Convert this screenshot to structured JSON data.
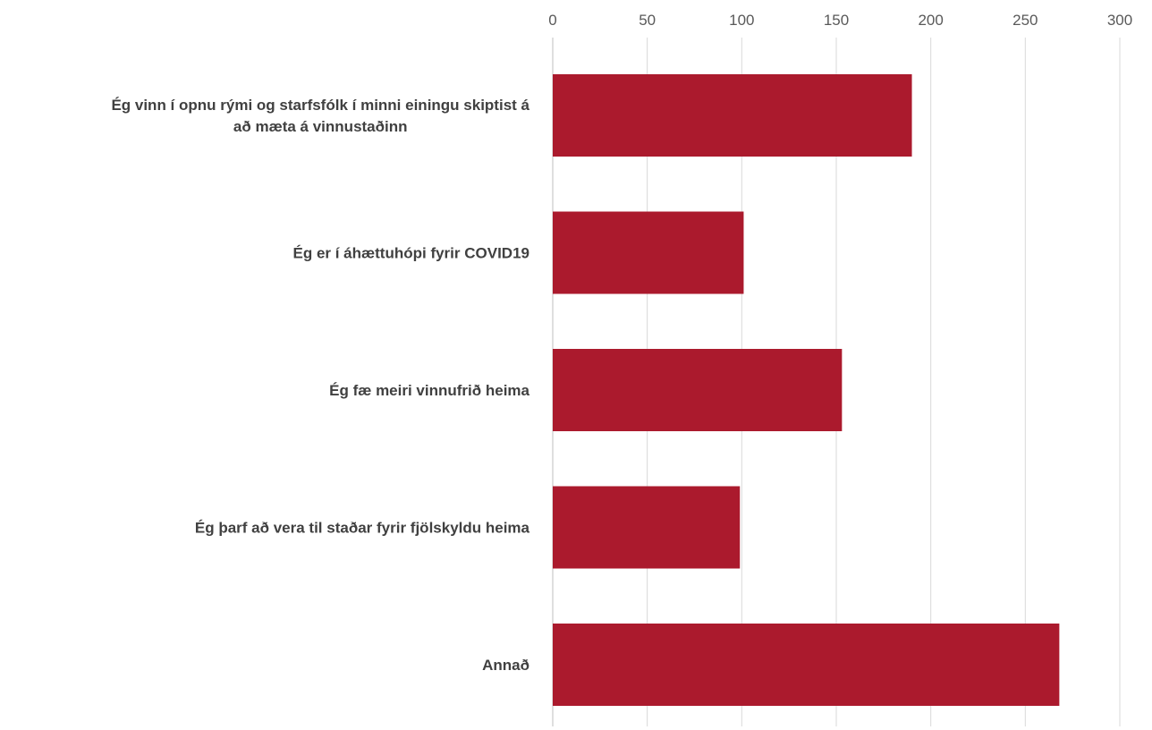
{
  "chart_data": {
    "type": "bar",
    "orientation": "horizontal",
    "categories": [
      "Ég vinn í opnu rými og starfsfólk í minni einingu skiptist á að mæta á vinnustaðinn",
      "Ég er í áhættuhópi fyrir COVID19",
      "Ég fæ meiri vinnufrið heima",
      "Ég þarf að vera til staðar fyrir fjölskyldu heima",
      "Annað"
    ],
    "category_lines": [
      [
        "Ég vinn í opnu rými og starfsfólk í minni einingu skiptist á",
        "að mæta á vinnustaðinn"
      ],
      [
        "Ég er í áhættuhópi fyrir COVID19"
      ],
      [
        "Ég fæ meiri vinnufrið heima"
      ],
      [
        "Ég þarf að vera til staðar fyrir fjölskyldu heima"
      ],
      [
        "Annað"
      ]
    ],
    "values": [
      190,
      101,
      153,
      99,
      268
    ],
    "xlim": [
      0,
      300
    ],
    "ticks": [
      0,
      50,
      100,
      150,
      200,
      250,
      300
    ],
    "tick_labels": [
      "0",
      "50",
      "100",
      "150",
      "200",
      "250",
      "300"
    ],
    "axis_position": "top",
    "grid": true,
    "bar_color": "#ab1a2d",
    "grid_color": "#d9d9d9",
    "title": "",
    "xlabel": "",
    "ylabel": ""
  }
}
